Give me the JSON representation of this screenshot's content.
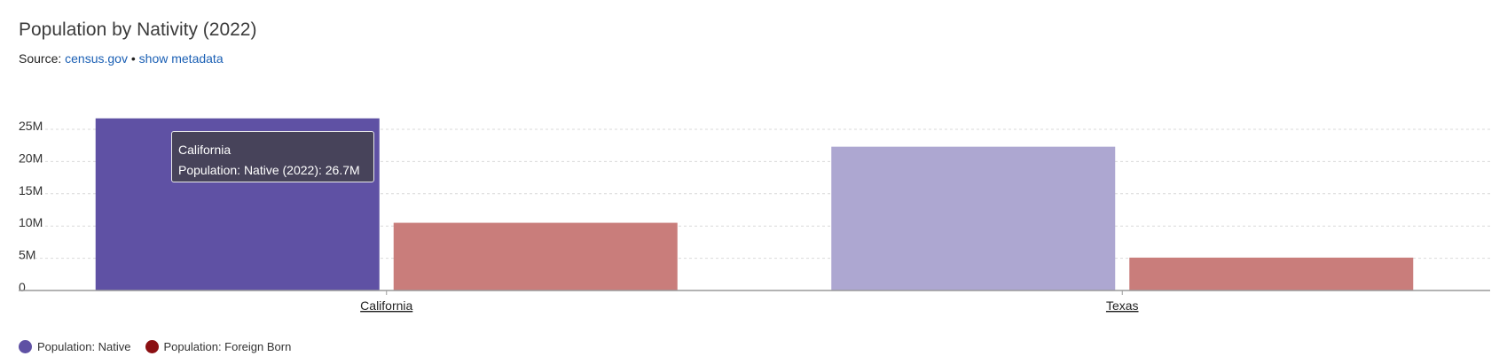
{
  "header": {
    "title": "Population by Nativity (2022)",
    "source_prefix": "Source: ",
    "source_link": "census.gov",
    "separator": " • ",
    "metadata_link": "show metadata"
  },
  "colors": {
    "native": "#5f51a4",
    "native_faded": "#ada7d1",
    "foreign": "#c97d7b",
    "foreign_swatch": "#8b0f12",
    "grid": "#d9d9d9",
    "axis": "#9a9a9a"
  },
  "tooltip": {
    "title": "California",
    "text": "Population: Native (2022): 26.7M"
  },
  "chart_data": {
    "type": "bar",
    "title": "Population by Nativity (2022)",
    "categories": [
      "California",
      "Texas"
    ],
    "series": [
      {
        "name": "Population: Native",
        "values": [
          26.7,
          22.3
        ]
      },
      {
        "name": "Population: Foreign Born",
        "values": [
          10.5,
          5.1
        ]
      }
    ],
    "unit": "millions",
    "ylim": [
      0,
      25
    ],
    "yticks": [
      0,
      5,
      10,
      15,
      20,
      25
    ],
    "ytick_labels": [
      "0",
      "5M",
      "10M",
      "15M",
      "20M",
      "25M"
    ],
    "grid": true,
    "legend_position": "bottom-left",
    "highlighted": {
      "category": "California",
      "series": "Population: Native"
    }
  },
  "legend": {
    "items": [
      {
        "label": "Population: Native"
      },
      {
        "label": "Population: Foreign Born"
      }
    ]
  }
}
